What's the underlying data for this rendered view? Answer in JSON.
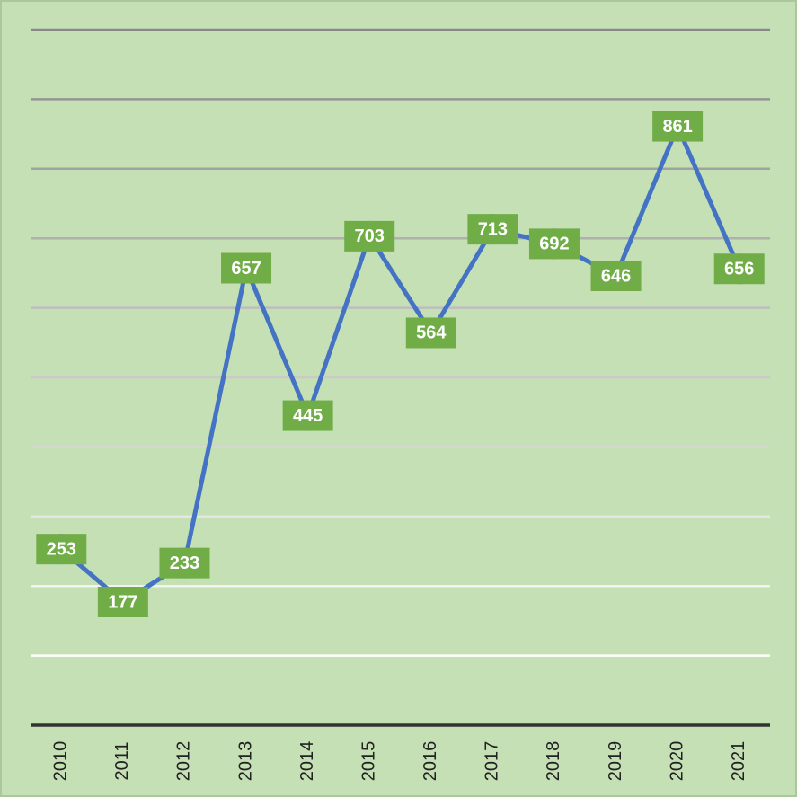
{
  "chart_data": {
    "type": "line",
    "categories": [
      "2010",
      "2011",
      "2012",
      "2013",
      "2014",
      "2015",
      "2016",
      "2017",
      "2018",
      "2019",
      "2020",
      "2021"
    ],
    "values": [
      253,
      177,
      233,
      657,
      445,
      703,
      564,
      713,
      692,
      646,
      861,
      656
    ],
    "color": "#4472c4",
    "label_color": "#70ad47",
    "ylim": [
      0,
      1000
    ],
    "yticks": [
      0,
      100,
      200,
      300,
      400,
      500,
      600,
      700,
      800,
      900,
      1000
    ],
    "grid": true
  }
}
